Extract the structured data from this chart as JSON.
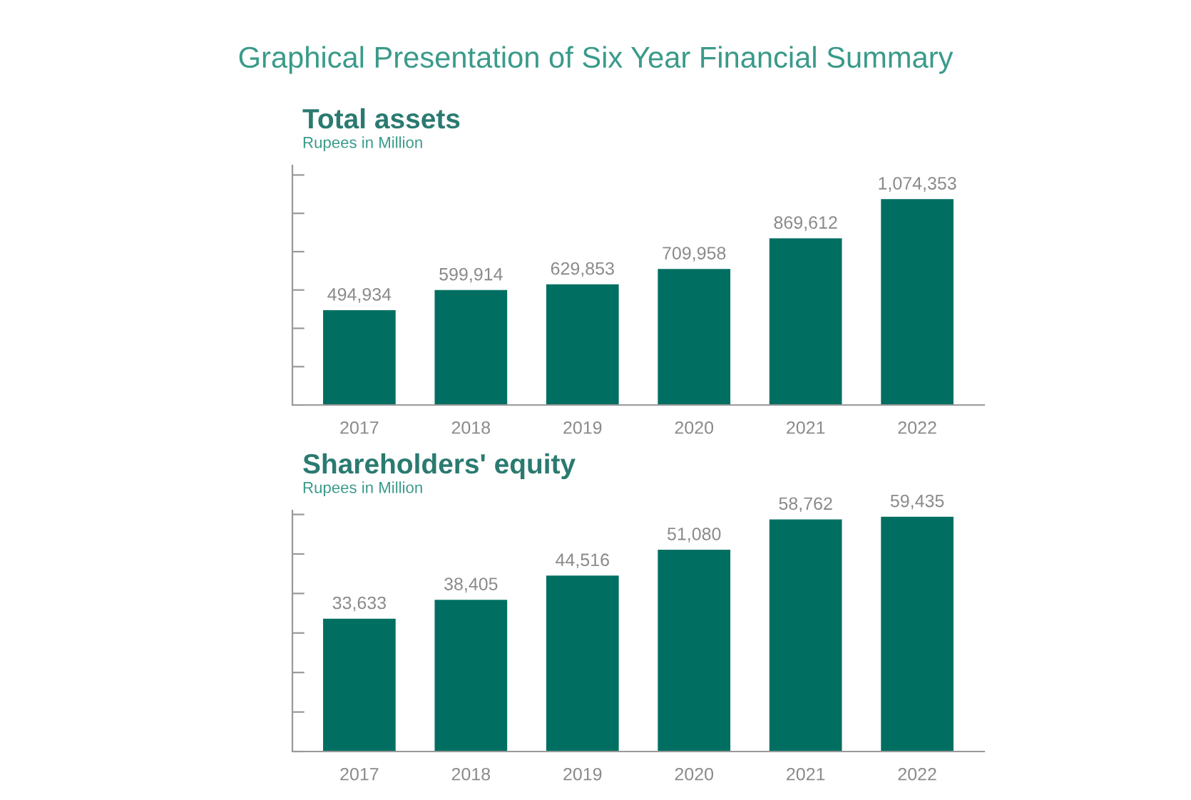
{
  "chart_data": [
    {
      "type": "bar",
      "title": "Total assets",
      "subtitle": "Rupees in Million",
      "annotations": [
        "Graphical Presentation of Six Year Financial Summary"
      ],
      "categories": [
        "2017",
        "2018",
        "2019",
        "2020",
        "2021",
        "2022"
      ],
      "values": [
        494934,
        599914,
        629853,
        709958,
        869612,
        1074353
      ],
      "value_labels": [
        "494,934",
        "599,914",
        "629,853",
        "709,958",
        "869,612",
        "1,074,353"
      ],
      "color": "#006f62",
      "ylim": [
        0,
        1250000
      ],
      "yticks": [
        {
          "value": 0,
          "label": null
        },
        {
          "value": 200000,
          "label": null
        },
        {
          "value": 400000,
          "label": null
        },
        {
          "value": 600000,
          "label": null
        },
        {
          "value": 800000,
          "label": null
        },
        {
          "value": 1000000,
          "label": null
        },
        {
          "value": 1200000,
          "label": null
        }
      ],
      "grid": false,
      "tick_labels": "x"
    },
    {
      "type": "bar",
      "title": "Shareholders' equity",
      "subtitle": "Rupees in Million",
      "categories": [
        "2017",
        "2018",
        "2019",
        "2020",
        "2021",
        "2022"
      ],
      "values": [
        33633,
        38405,
        44516,
        51080,
        58762,
        59435
      ],
      "value_labels": [
        "33,633",
        "38,405",
        "44,516",
        "51,080",
        "58,762",
        "59,435"
      ],
      "color": "#006f62",
      "ylim": [
        0,
        61000
      ],
      "yticks": [
        {
          "value": 0,
          "label": null
        },
        {
          "value": 10000,
          "label": null
        },
        {
          "value": 20000,
          "label": null
        },
        {
          "value": 30000,
          "label": null
        },
        {
          "value": 40000,
          "label": null
        },
        {
          "value": 50000,
          "label": null
        },
        {
          "value": 60000,
          "label": null
        }
      ],
      "grid": false,
      "tick_labels": "x"
    }
  ]
}
